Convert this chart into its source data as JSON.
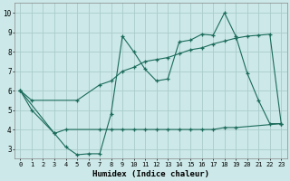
{
  "xlabel": "Humidex (Indice chaleur)",
  "bg_color": "#cce8e8",
  "grid_color": "#aacccc",
  "line_color": "#1a6b5a",
  "xlim": [
    -0.5,
    23.5
  ],
  "ylim": [
    2.5,
    10.5
  ],
  "xticks": [
    0,
    1,
    2,
    3,
    4,
    5,
    6,
    7,
    8,
    9,
    10,
    11,
    12,
    13,
    14,
    15,
    16,
    17,
    18,
    19,
    20,
    21,
    22,
    23
  ],
  "yticks": [
    3,
    4,
    5,
    6,
    7,
    8,
    9,
    10
  ],
  "line1_x": [
    0,
    1,
    3,
    4,
    5,
    6,
    7,
    8,
    9,
    10,
    11,
    12,
    13,
    14,
    15,
    16,
    17,
    18,
    19,
    20,
    21,
    22,
    23
  ],
  "line1_y": [
    6.0,
    5.0,
    3.8,
    3.1,
    2.7,
    2.75,
    2.75,
    4.8,
    8.8,
    8.0,
    7.1,
    6.5,
    6.6,
    8.5,
    8.6,
    8.9,
    8.85,
    10.0,
    8.8,
    6.9,
    5.5,
    4.3,
    4.3
  ],
  "line2_x": [
    0,
    3,
    4,
    7,
    8,
    9,
    10,
    11,
    12,
    13,
    14,
    15,
    16,
    17,
    18,
    19,
    23
  ],
  "line2_y": [
    6.0,
    3.8,
    4.0,
    4.0,
    4.0,
    4.0,
    4.0,
    4.0,
    4.0,
    4.0,
    4.0,
    4.0,
    4.0,
    4.0,
    4.1,
    4.1,
    4.3
  ],
  "line3_x": [
    0,
    1,
    5,
    7,
    8,
    9,
    10,
    11,
    12,
    13,
    14,
    15,
    16,
    17,
    18,
    19,
    20,
    21,
    22,
    23
  ],
  "line3_y": [
    6.0,
    5.5,
    5.5,
    6.3,
    6.5,
    7.0,
    7.2,
    7.5,
    7.6,
    7.7,
    7.9,
    8.1,
    8.2,
    8.4,
    8.55,
    8.7,
    8.8,
    8.85,
    8.9,
    4.3
  ]
}
